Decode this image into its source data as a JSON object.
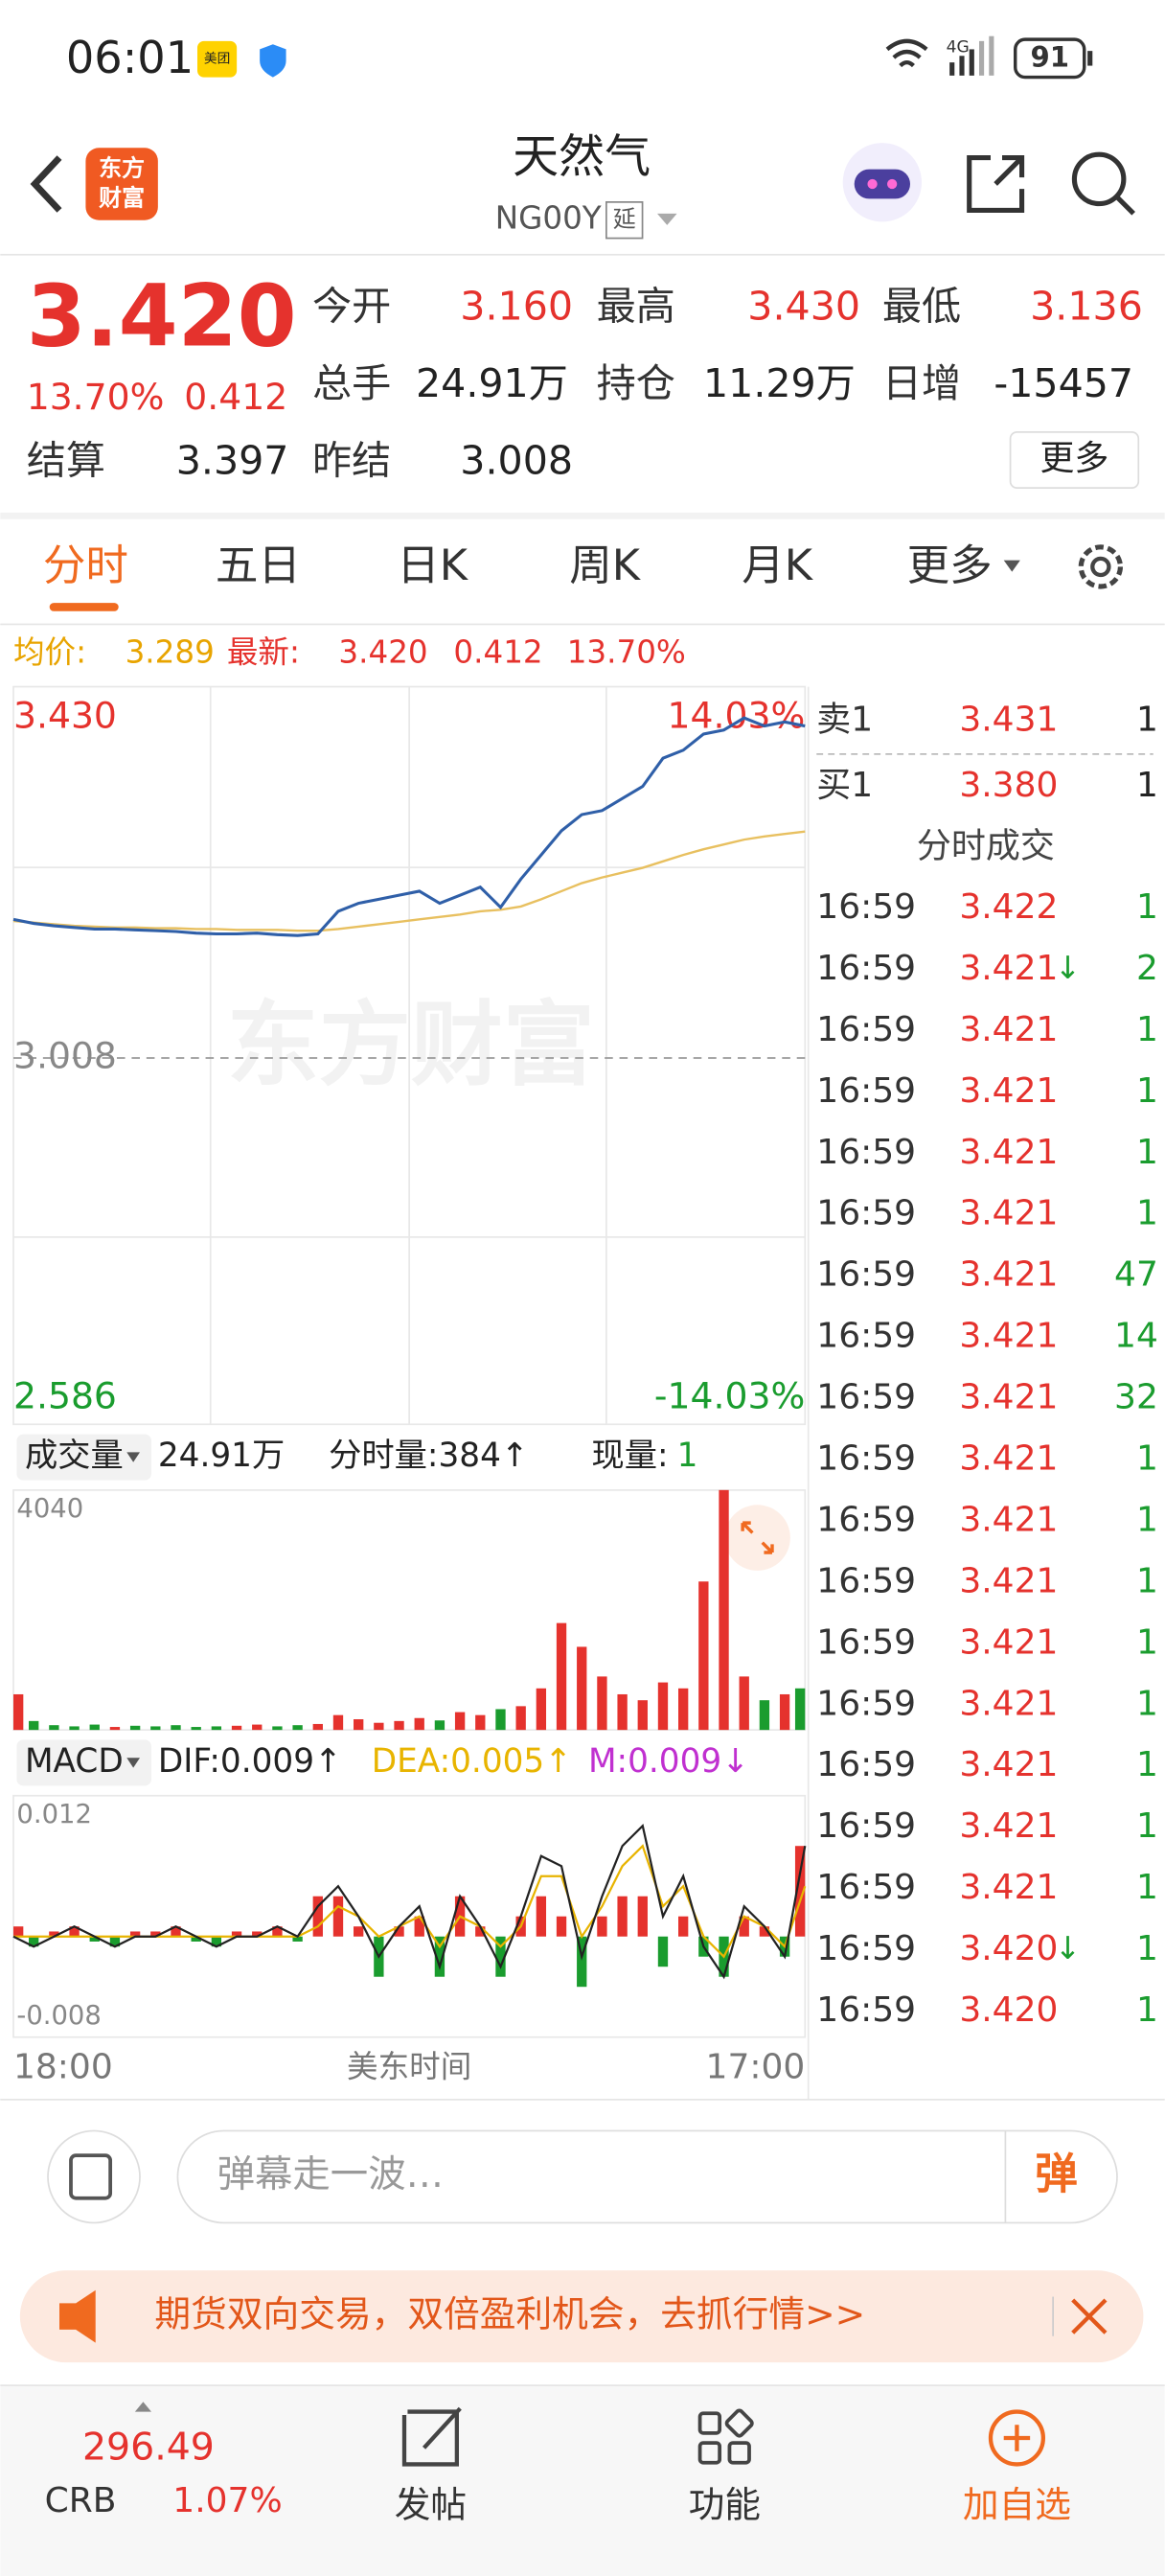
{
  "status_bar": {
    "time": "06:01",
    "badge": "美团",
    "network": "4G",
    "battery": "91"
  },
  "header": {
    "logo": [
      "东方",
      "财富"
    ],
    "title": "天然气",
    "code": "NG00Y",
    "tag": "延"
  },
  "quote": {
    "price": "3.420",
    "change_pct": "13.70%",
    "change": "0.412",
    "open_label": "今开",
    "open": "3.160",
    "high_label": "最高",
    "high": "3.430",
    "low_label": "最低",
    "low": "3.136",
    "volume_label": "总手",
    "volume": "24.91万",
    "oi_label": "持仓",
    "oi": "11.29万",
    "oi_change_label": "日增",
    "oi_change": "-15457",
    "settle_label": "结算",
    "settle": "3.397",
    "prev_settle_label": "昨结",
    "prev_settle": "3.008",
    "more": "更多"
  },
  "tabs": [
    "分时",
    "五日",
    "日K",
    "周K",
    "月K",
    "更多"
  ],
  "info_line": {
    "avg_label": "均价:",
    "avg": "3.289",
    "last_label": "最新:",
    "last": "3.420",
    "change": "0.412",
    "pct": "13.70%"
  },
  "intraday": {
    "ylim": [
      2.586,
      3.43
    ],
    "yticks": [
      {
        "value": 3.43,
        "label": "3.430"
      },
      {
        "value": 3.008,
        "label": "3.008"
      },
      {
        "value": 2.586,
        "label": "2.586"
      }
    ],
    "pct_labels": [
      "14.03%",
      "-14.03%"
    ],
    "watermark": "东方财富",
    "price": [
      3.18,
      3.175,
      3.172,
      3.17,
      3.168,
      3.168,
      3.167,
      3.166,
      3.165,
      3.163,
      3.162,
      3.162,
      3.163,
      3.161,
      3.16,
      3.162,
      3.19,
      3.2,
      3.205,
      3.21,
      3.215,
      3.2,
      3.21,
      3.22,
      3.195,
      3.23,
      3.26,
      3.29,
      3.31,
      3.315,
      3.33,
      3.345,
      3.38,
      3.39,
      3.41,
      3.415,
      3.43,
      3.42,
      3.425,
      3.42
    ],
    "avg": [
      3.178,
      3.176,
      3.174,
      3.172,
      3.171,
      3.17,
      3.17,
      3.169,
      3.169,
      3.168,
      3.168,
      3.167,
      3.167,
      3.167,
      3.166,
      3.166,
      3.168,
      3.171,
      3.174,
      3.177,
      3.18,
      3.183,
      3.186,
      3.19,
      3.192,
      3.196,
      3.205,
      3.215,
      3.225,
      3.232,
      3.238,
      3.244,
      3.252,
      3.26,
      3.267,
      3.273,
      3.279,
      3.283,
      3.286,
      3.289
    ],
    "x_labels": [
      "18:00",
      "美东时间",
      "17:00"
    ]
  },
  "volume": {
    "label": "成交量",
    "total": "24.91万",
    "period": "分时量:384↑",
    "current_label": "现量:",
    "current": "1",
    "ylim": [
      0,
      4040
    ],
    "yticks": [
      4040
    ],
    "values": [
      600,
      150,
      80,
      60,
      90,
      50,
      70,
      60,
      80,
      50,
      60,
      70,
      90,
      60,
      80,
      100,
      250,
      180,
      120,
      150,
      200,
      160,
      300,
      250,
      350,
      400,
      700,
      1800,
      1400,
      900,
      600,
      500,
      800,
      700,
      2500,
      4040,
      900,
      500,
      600,
      700
    ]
  },
  "macd": {
    "label": "MACD",
    "dif_text": "DIF:0.009↑",
    "dea_text": "DEA:0.005↑",
    "m_text": "M:0.009↓",
    "ylim": [
      -0.01,
      0.014
    ],
    "yticks": [
      0.012,
      -0.008
    ],
    "dif": [
      0,
      -0.001,
      0,
      0.001,
      0,
      -0.001,
      0,
      0,
      0.001,
      0,
      -0.001,
      0,
      0,
      0.001,
      0,
      0.003,
      0.005,
      0.002,
      -0.002,
      0.001,
      0.003,
      -0.003,
      0.004,
      0.001,
      -0.003,
      0.002,
      0.008,
      0.007,
      -0.002,
      0.004,
      0.009,
      0.011,
      0.002,
      0.006,
      -0.001,
      -0.004,
      0.003,
      0.001,
      -0.002,
      0.009
    ],
    "dea": [
      0,
      0,
      0,
      0,
      0,
      0,
      0,
      0,
      0,
      0,
      0,
      0,
      0,
      0,
      0,
      0.001,
      0.003,
      0.002,
      0,
      0.001,
      0.002,
      -0.001,
      0.002,
      0.001,
      -0.001,
      0.001,
      0.006,
      0.006,
      0,
      0.003,
      0.007,
      0.009,
      0.003,
      0.005,
      0,
      -0.002,
      0.002,
      0.001,
      -0.001,
      0.005
    ],
    "hist": [
      0.001,
      -0.001,
      0.0005,
      0.001,
      -0.0005,
      -0.001,
      0.0005,
      0.0005,
      0.001,
      -0.0005,
      -0.001,
      0.0005,
      0.0005,
      0.001,
      -0.0005,
      0.004,
      0.004,
      0.001,
      -0.004,
      0.001,
      0.002,
      -0.004,
      0.004,
      0.001,
      -0.004,
      0.002,
      0.004,
      0.002,
      -0.005,
      0.002,
      0.004,
      0.004,
      -0.003,
      0.002,
      -0.002,
      -0.004,
      0.002,
      0.001,
      -0.002,
      0.009
    ]
  },
  "order_book": {
    "ask": {
      "label": "卖1",
      "price": "3.431",
      "volume": "1"
    },
    "bid": {
      "label": "买1",
      "price": "3.380",
      "volume": "1"
    },
    "title": "分时成交",
    "trades": [
      {
        "time": "16:59",
        "price": "3.422",
        "volume": "1"
      },
      {
        "time": "16:59",
        "price": "3.421",
        "arrow": "↓",
        "volume": "2"
      },
      {
        "time": "16:59",
        "price": "3.421",
        "volume": "1"
      },
      {
        "time": "16:59",
        "price": "3.421",
        "volume": "1"
      },
      {
        "time": "16:59",
        "price": "3.421",
        "volume": "1"
      },
      {
        "time": "16:59",
        "price": "3.421",
        "volume": "1"
      },
      {
        "time": "16:59",
        "price": "3.421",
        "volume": "47"
      },
      {
        "time": "16:59",
        "price": "3.421",
        "volume": "14"
      },
      {
        "time": "16:59",
        "price": "3.421",
        "volume": "32"
      },
      {
        "time": "16:59",
        "price": "3.421",
        "volume": "1"
      },
      {
        "time": "16:59",
        "price": "3.421",
        "volume": "1"
      },
      {
        "time": "16:59",
        "price": "3.421",
        "volume": "1"
      },
      {
        "time": "16:59",
        "price": "3.421",
        "volume": "1"
      },
      {
        "time": "16:59",
        "price": "3.421",
        "volume": "1"
      },
      {
        "time": "16:59",
        "price": "3.421",
        "volume": "1"
      },
      {
        "time": "16:59",
        "price": "3.421",
        "volume": "1"
      },
      {
        "time": "16:59",
        "price": "3.421",
        "volume": "1"
      },
      {
        "time": "16:59",
        "price": "3.420",
        "arrow": "↓",
        "volume": "1"
      },
      {
        "time": "16:59",
        "price": "3.420",
        "volume": "1"
      }
    ]
  },
  "comment_bar": {
    "placeholder": "弹幕走一波…",
    "button": "弹"
  },
  "banner": {
    "text": "期货双向交易，双倍盈利机会，去抓行情>>"
  },
  "bottom_nav": {
    "index_value": "296.49",
    "index_name": "CRB",
    "index_change": "1.07%",
    "items": [
      "发帖",
      "功能",
      "加自选"
    ]
  }
}
